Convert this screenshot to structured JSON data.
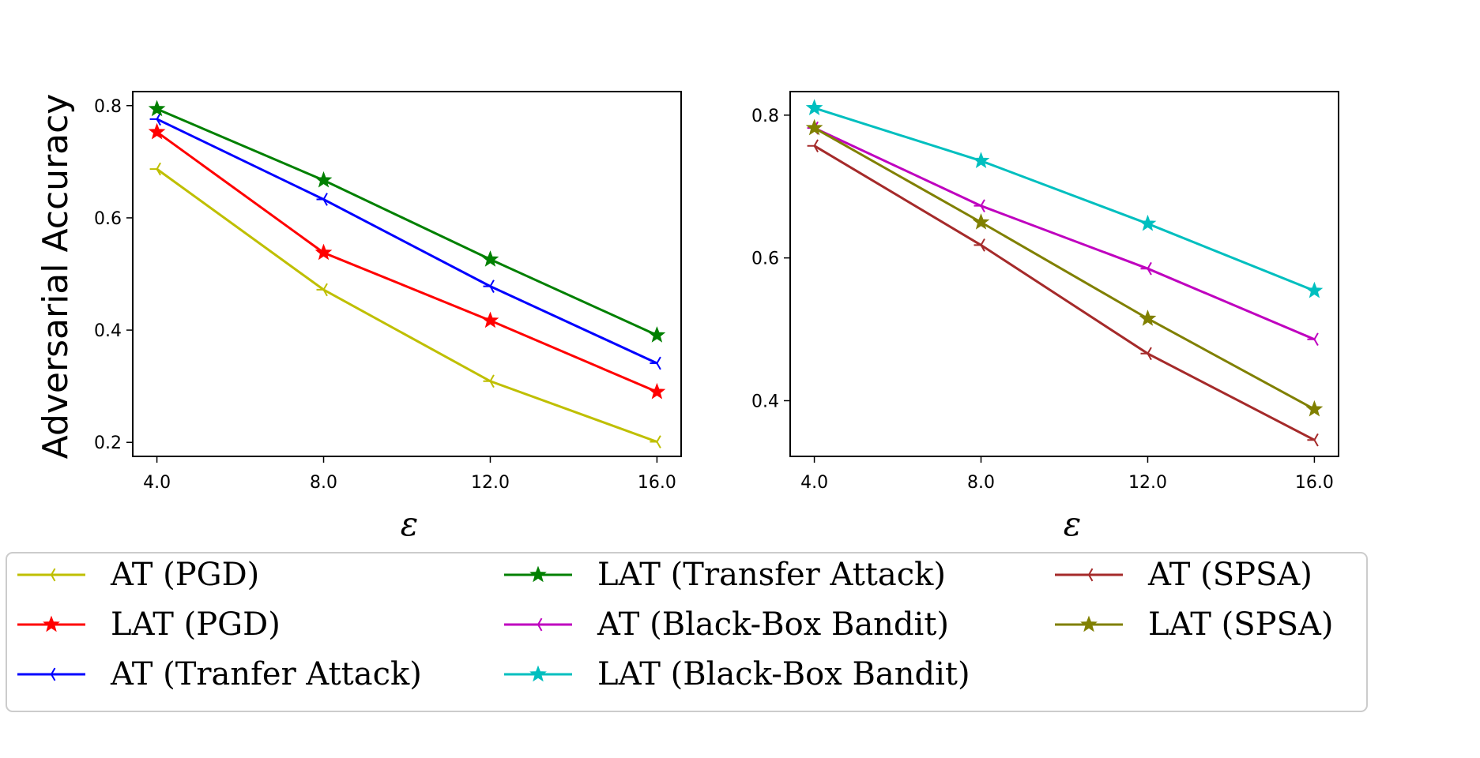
{
  "colors": {
    "at_pgd": "#bfbf00",
    "lat_pgd": "#ff0000",
    "at_transfer": "#0000ff",
    "lat_transfer": "#008000",
    "at_bandit": "#bf00bf",
    "lat_bandit": "#00bfbf",
    "at_spsa": "#a52a2a",
    "lat_spsa": "#808000"
  },
  "legend": [
    {
      "label": "AT (PGD)",
      "color": "#bfbf00",
      "marker": "tri"
    },
    {
      "label": "LAT (PGD)",
      "color": "#ff0000",
      "marker": "star"
    },
    {
      "label": "AT (Tranfer Attack)",
      "color": "#0000ff",
      "marker": "tri"
    },
    {
      "label": "LAT (Transfer Attack)",
      "color": "#008000",
      "marker": "star"
    },
    {
      "label": "AT (Black-Box Bandit)",
      "color": "#bf00bf",
      "marker": "tri"
    },
    {
      "label": "LAT (Black-Box Bandit)",
      "color": "#00bfbf",
      "marker": "star"
    },
    {
      "label": "AT (SPSA)",
      "color": "#a52a2a",
      "marker": "tri"
    },
    {
      "label": "LAT (SPSA)",
      "color": "#808000",
      "marker": "star"
    }
  ],
  "chart_data": [
    {
      "type": "line",
      "ylabel": "Adversarial Accuracy",
      "xlabel": "ε",
      "x": [
        4.0,
        8.0,
        12.0,
        16.0
      ],
      "xticklabels": [
        "4.0",
        "8.0",
        "12.0",
        "16.0"
      ],
      "yticks": [
        0.2,
        0.4,
        0.6,
        0.8
      ],
      "yticklabels": [
        "0.2",
        "0.4",
        "0.6",
        "0.8"
      ],
      "xlim": [
        3.42,
        16.58
      ],
      "ylim": [
        0.175,
        0.825
      ],
      "series": [
        {
          "name": "AT (PGD)",
          "color": "#bfbf00",
          "marker": "tri",
          "values": [
            0.687,
            0.472,
            0.309,
            0.201
          ]
        },
        {
          "name": "LAT (PGD)",
          "color": "#ff0000",
          "marker": "star",
          "values": [
            0.753,
            0.538,
            0.417,
            0.29
          ]
        },
        {
          "name": "AT (Tranfer Attack)",
          "color": "#0000ff",
          "marker": "tri",
          "values": [
            0.776,
            0.633,
            0.478,
            0.341
          ]
        },
        {
          "name": "LAT (Transfer Attack)",
          "color": "#008000",
          "marker": "star",
          "values": [
            0.794,
            0.667,
            0.526,
            0.391
          ]
        }
      ]
    },
    {
      "type": "line",
      "ylabel": "",
      "xlabel": "ε",
      "x": [
        4.0,
        8.0,
        12.0,
        16.0
      ],
      "xticklabels": [
        "4.0",
        "8.0",
        "12.0",
        "16.0"
      ],
      "yticks": [
        0.4,
        0.6,
        0.8
      ],
      "yticklabels": [
        "0.4",
        "0.6",
        "0.8"
      ],
      "xlim": [
        3.42,
        16.58
      ],
      "ylim": [
        0.322,
        0.833
      ],
      "series": [
        {
          "name": "AT (SPSA)",
          "color": "#a52a2a",
          "marker": "tri",
          "values": [
            0.757,
            0.618,
            0.466,
            0.345
          ]
        },
        {
          "name": "AT (Black-Box Bandit)",
          "color": "#bf00bf",
          "marker": "tri",
          "values": [
            0.782,
            0.673,
            0.585,
            0.486
          ]
        },
        {
          "name": "LAT (SPSA)",
          "color": "#808000",
          "marker": "star",
          "values": [
            0.782,
            0.65,
            0.515,
            0.388
          ]
        },
        {
          "name": "LAT (Black-Box Bandit)",
          "color": "#00bfbf",
          "marker": "star",
          "values": [
            0.81,
            0.736,
            0.648,
            0.554
          ]
        }
      ]
    }
  ]
}
